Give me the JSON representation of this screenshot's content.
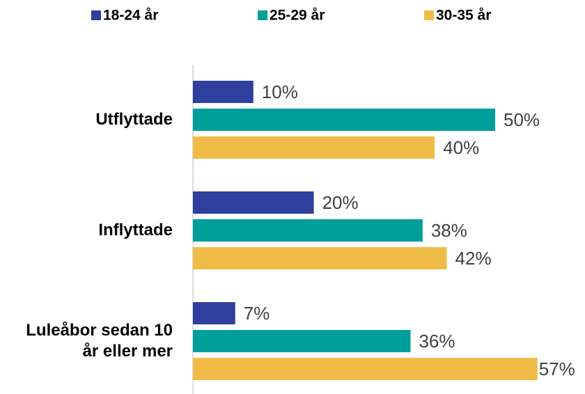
{
  "chart_data": {
    "type": "hbar",
    "categories": [
      "Utflyttade",
      "Inflyttade",
      "Luleåbor sedan 10 år eller mer"
    ],
    "series": [
      {
        "name": "18-24 år",
        "color": "#2e3f9e",
        "values": [
          10,
          20,
          7
        ],
        "value_labels": [
          "10%",
          "20%",
          "7%"
        ]
      },
      {
        "name": "25-29 år",
        "color": "#009e9a",
        "values": [
          50,
          38,
          36
        ],
        "value_labels": [
          "50%",
          "38%",
          "36%"
        ]
      },
      {
        "name": "30-35 år",
        "color": "#f0bc47",
        "values": [
          40,
          42,
          57
        ],
        "value_labels": [
          "40%",
          "42%",
          "57%"
        ]
      }
    ],
    "legend": "top"
  }
}
